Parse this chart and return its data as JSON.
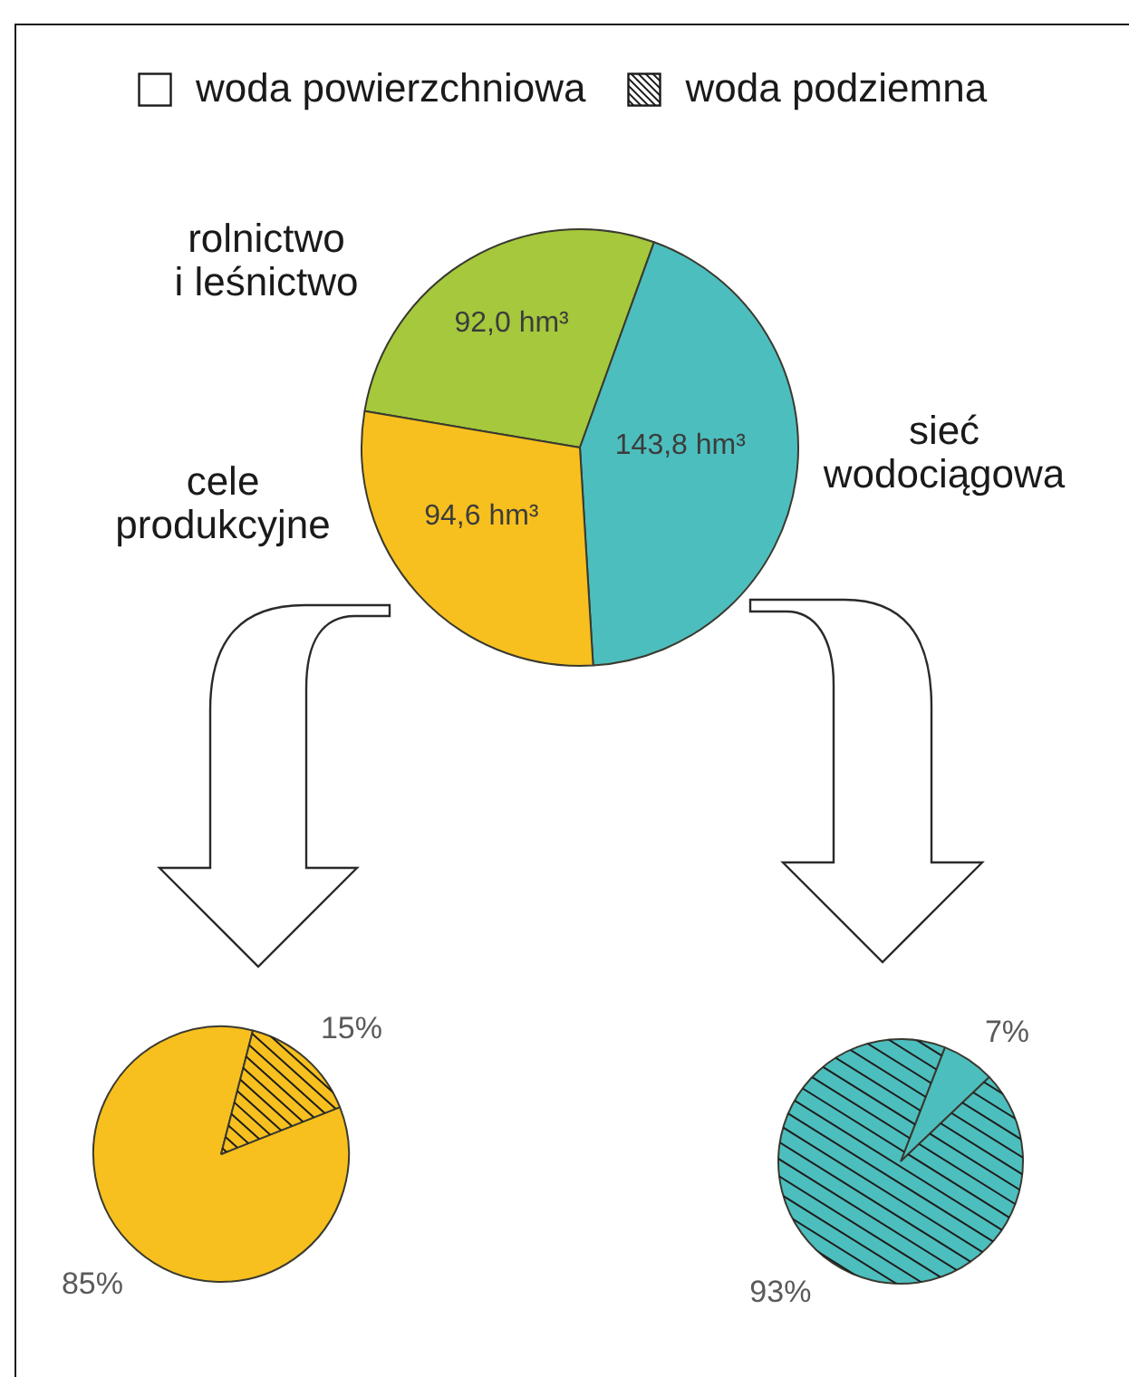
{
  "chart_data": [
    {
      "type": "other",
      "annotations": [
        "woda powierzchniowa",
        "woda podziemna"
      ]
    },
    {
      "type": "pie",
      "categories": [
        "rolnictwo\ni leśnictwo",
        "sieć\nwodociągowa",
        "cele\nprodukcyjne"
      ],
      "values": [
        92.0,
        143.8,
        94.6
      ],
      "colors": [
        "#a5c83c",
        "#4dbebe",
        "#f7c01e"
      ],
      "value_labels": [
        "92,0 hm³",
        "143,8 hm³",
        "94,6 hm³"
      ]
    },
    {
      "type": "pie",
      "categories": [
        null,
        null
      ],
      "values": [
        85,
        15
      ],
      "colors": [
        "#f7c01e",
        "#f7c01e"
      ],
      "value_labels": [
        "85%",
        "15%"
      ]
    },
    {
      "type": "pie",
      "categories": [
        null,
        null
      ],
      "values": [
        7,
        93
      ],
      "colors": [
        "#4dbebe",
        "#4dbebe"
      ],
      "value_labels": [
        "7%",
        "93%"
      ]
    }
  ]
}
